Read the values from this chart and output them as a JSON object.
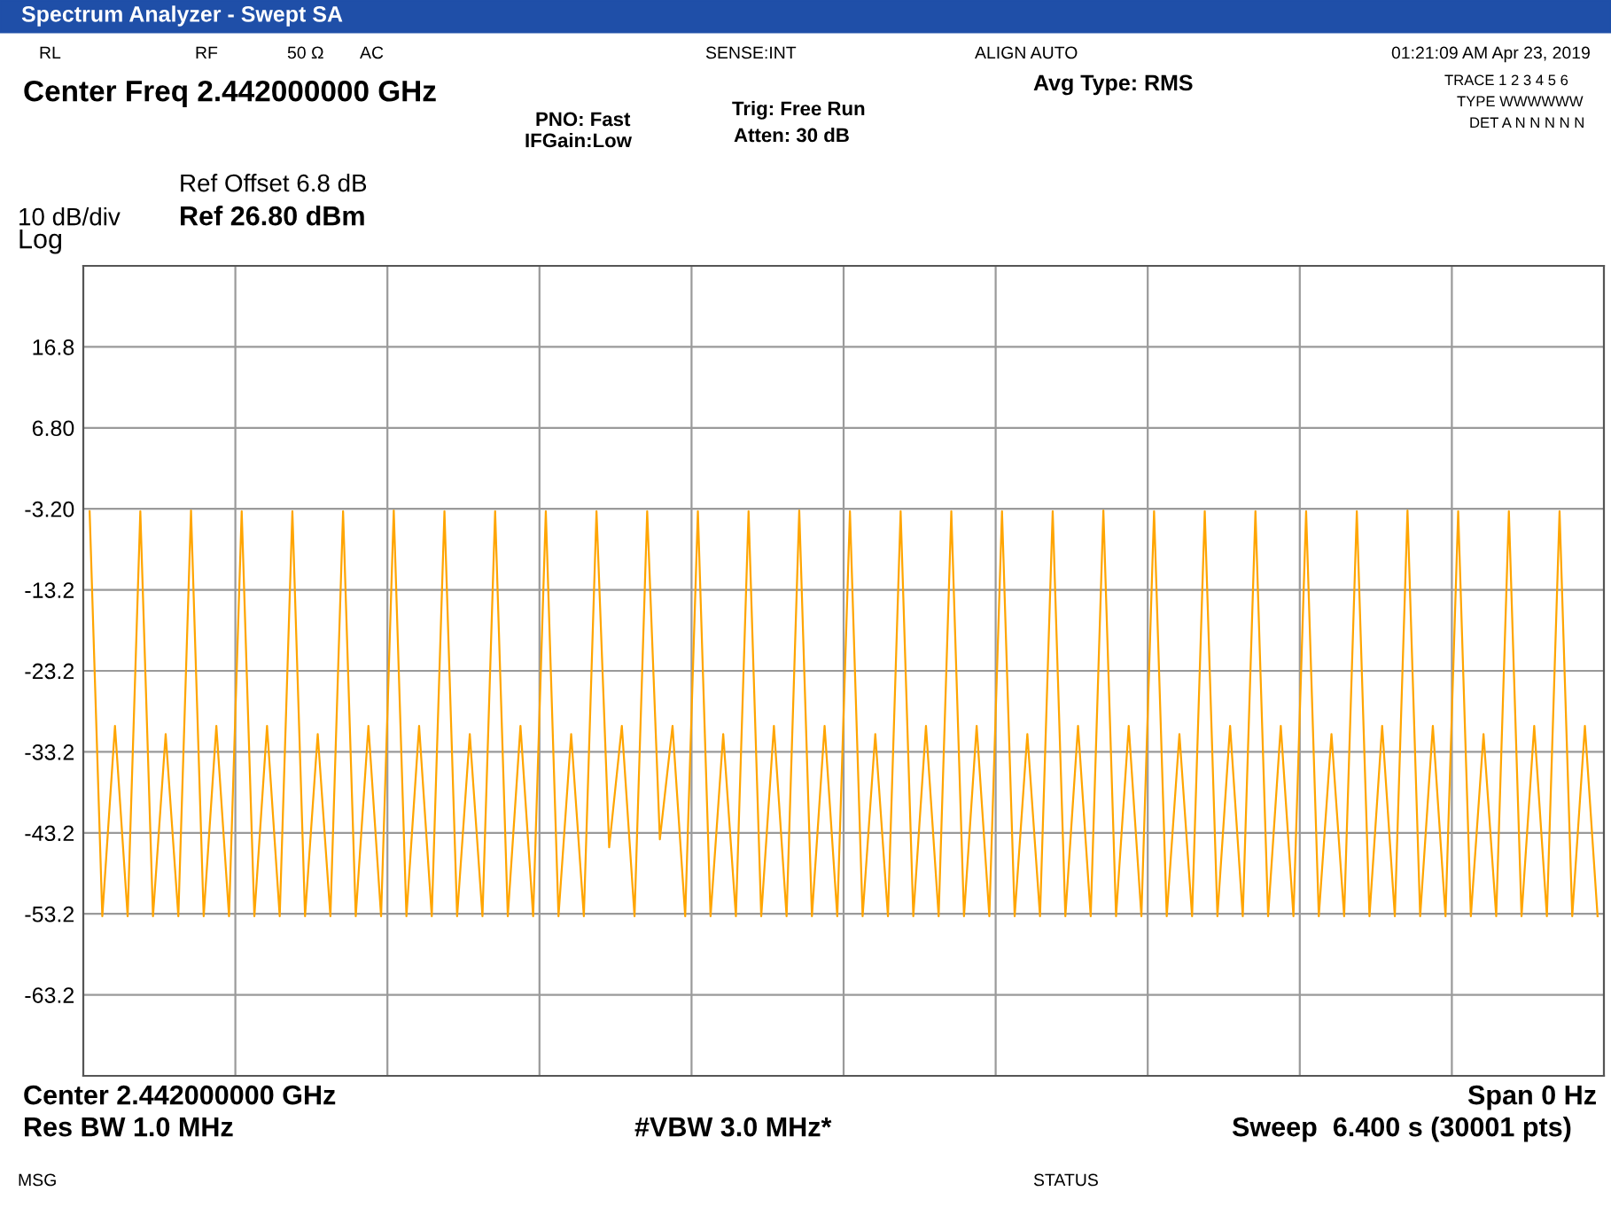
{
  "chart_data": {
    "type": "line",
    "title": "Spectrum Analyzer - Swept SA",
    "categories": [
      null,
      null,
      null,
      null,
      null,
      null,
      null,
      null,
      null,
      null,
      null,
      null,
      null,
      null,
      null,
      null,
      null,
      null,
      null,
      null,
      null,
      null,
      null,
      null,
      null,
      null,
      null,
      null,
      null,
      null,
      null,
      null,
      null,
      null,
      null,
      null,
      null,
      null,
      null,
      null,
      null,
      null,
      null,
      null,
      null,
      null,
      null,
      null,
      null,
      null,
      null,
      null,
      null,
      null,
      null,
      null,
      null,
      null,
      null,
      null,
      null,
      null,
      null,
      null,
      null,
      null,
      null,
      null,
      null,
      null,
      null,
      null,
      null,
      null,
      null,
      null,
      null,
      null,
      null,
      null,
      null,
      null,
      null,
      null,
      null,
      null,
      null,
      null,
      null,
      null,
      null,
      null,
      null,
      null,
      null,
      null,
      null,
      null,
      null,
      null,
      null,
      null,
      null,
      null,
      null,
      null,
      null,
      null,
      null,
      null,
      null,
      null,
      null,
      null,
      null,
      null,
      null,
      null,
      null,
      null
    ],
    "series": [
      {
        "color": "#ffa500",
        "values": [
          -3.5,
          -53.5,
          -30,
          -53.5,
          -3.5,
          -53.5,
          -31,
          -53.5,
          -3.4,
          -53.5,
          -30,
          -53.5,
          -3.5,
          -53.5,
          -30,
          -53.5,
          -3.5,
          -53.5,
          -31,
          -53.5,
          -3.5,
          -53.5,
          -30,
          -53.5,
          -3.4,
          -53.5,
          -30,
          -53.5,
          -3.5,
          -53.5,
          -31,
          -53.5,
          -3.5,
          -53.5,
          -30,
          -53.5,
          -3.5,
          -53.5,
          -31,
          -53.5,
          -3.5,
          -45,
          -30,
          -53.5,
          -3.5,
          -44,
          -30,
          -53.5,
          -3.5,
          -53.5,
          -31,
          -53.5,
          -3.5,
          -53.5,
          -30,
          -53.5,
          -3.4,
          -53.5,
          -30,
          -53.5,
          -3.5,
          -53.5,
          -31,
          -53.5,
          -3.5,
          -53.5,
          -30,
          -53.5,
          -3.5,
          -53.5,
          -30,
          -53.5,
          -3.5,
          -53.5,
          -31,
          -53.5,
          -3.5,
          -53.5,
          -30,
          -53.5,
          -3.4,
          -53.5,
          -30,
          -53.5,
          -3.5,
          -53.5,
          -31,
          -53.5,
          -3.5,
          -53.5,
          -30,
          -53.5,
          -3.5,
          -53.5,
          -30,
          -53.5,
          -3.5,
          -53.5,
          -31,
          -53.5,
          -3.5,
          -53.5,
          -30,
          -53.5,
          -3.4,
          -53.5,
          -30,
          -53.5,
          -3.5,
          -53.5,
          -31,
          -53.5,
          -3.5,
          -53.5,
          -30,
          -53.5,
          -3.5,
          -53.5,
          -30,
          -53.5
        ]
      }
    ],
    "ylim": [
      -73.2,
      26.8
    ],
    "yticks": [
      16.8,
      {
        "value": 6.8,
        "label": "6.80"
      },
      {
        "value": -3.2,
        "label": "-3.20"
      },
      {
        "value": -13.2,
        "label": "-13.2"
      },
      {
        "value": -23.2,
        "label": "-23.2"
      },
      {
        "value": -33.2,
        "label": "-33.2"
      },
      {
        "value": -43.2,
        "label": "-43.2"
      },
      {
        "value": -53.2,
        "label": "-53.2"
      },
      {
        "value": -63.2,
        "label": "-63.2"
      }
    ],
    "grid": true,
    "tick_labels": "y",
    "annotations": [
      "RL",
      "RF",
      "50 Ω",
      "AC",
      "SENSE:INT",
      "ALIGN AUTO",
      "01:21:09 AM Apr 23, 2019",
      "Center Freq 2.442000000 GHz",
      "Avg Type: RMS",
      "PNO: Fast",
      "IFGain:Low",
      "Trig: Free Run",
      "Atten: 30 dB",
      "TRACE 1 2 3 4 5 6",
      "TYPE WWWWWW",
      "DET A N N N N N",
      "Ref Offset 6.8 dB",
      "10 dB/div",
      "Ref 26.80 dBm",
      "Log",
      "Center 2.442000000 GHz",
      "Span 0 Hz",
      "Res BW 1.0 MHz",
      "#VBW 3.0 MHz*",
      "Sweep  6.400 s (30001 pts)",
      "MSG",
      "STATUS"
    ]
  }
}
